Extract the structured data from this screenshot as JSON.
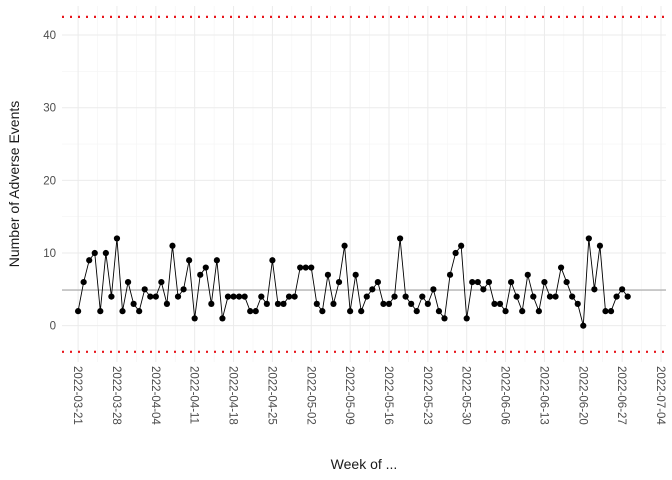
{
  "chart_data": {
    "type": "line",
    "xlabel": "Week of ...",
    "ylabel": "Number of Adverse Events",
    "x_start": "2022-03-21",
    "x_tick_labels": [
      "2022-03-21",
      "2022-03-28",
      "2022-04-04",
      "2022-04-11",
      "2022-04-18",
      "2022-04-25",
      "2022-05-02",
      "2022-05-09",
      "2022-05-16",
      "2022-05-23",
      "2022-05-30",
      "2022-06-06",
      "2022-06-13",
      "2022-06-20",
      "2022-06-27",
      "2022-07-04"
    ],
    "y_ticks": [
      0,
      10,
      20,
      30,
      40
    ],
    "ylim": [
      -5,
      44
    ],
    "grid": true,
    "center_line": 4.9,
    "upper_limit": 42.5,
    "lower_limit": -3.6,
    "values": [
      2,
      6,
      9,
      10,
      2,
      10,
      4,
      12,
      2,
      6,
      3,
      2,
      5,
      4,
      4,
      6,
      3,
      11,
      4,
      5,
      9,
      1,
      7,
      8,
      3,
      9,
      1,
      4,
      4,
      4,
      4,
      2,
      2,
      4,
      3,
      9,
      3,
      3,
      4,
      4,
      8,
      8,
      8,
      3,
      2,
      7,
      3,
      6,
      11,
      2,
      7,
      2,
      4,
      5,
      6,
      3,
      3,
      4,
      12,
      4,
      3,
      2,
      4,
      3,
      5,
      2,
      1,
      7,
      10,
      11,
      1,
      6,
      6,
      5,
      6,
      3,
      3,
      2,
      6,
      4,
      2,
      7,
      4,
      2,
      6,
      4,
      4,
      8,
      6,
      4,
      3,
      0,
      12,
      5,
      11,
      2,
      2,
      4,
      5,
      4
    ]
  }
}
